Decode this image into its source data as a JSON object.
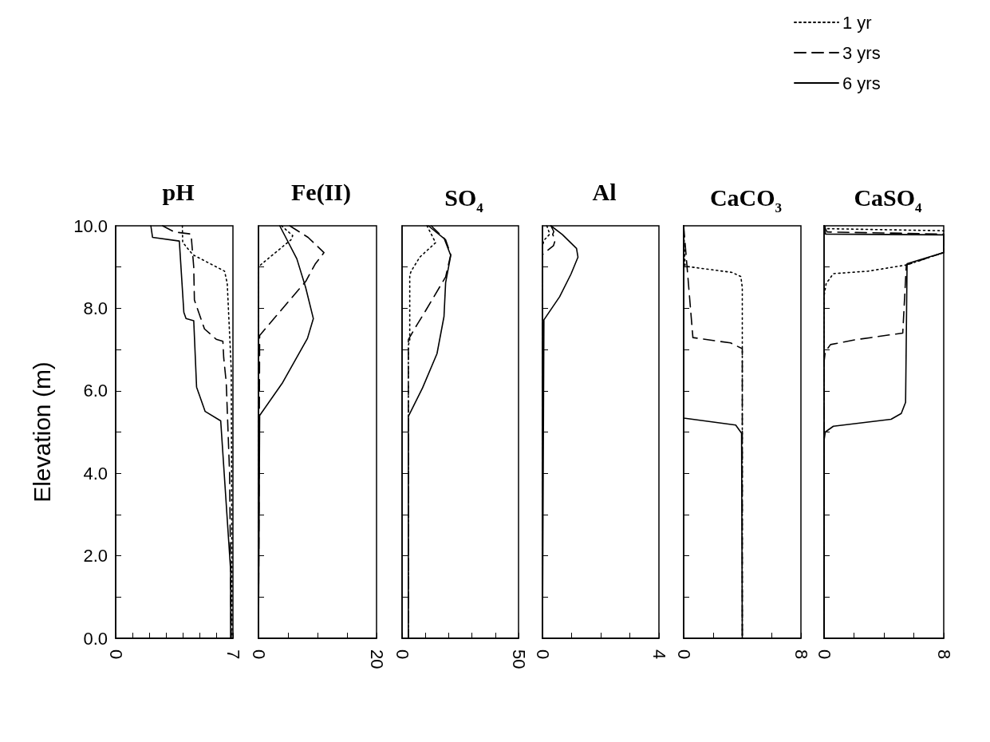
{
  "chart_data": [
    {
      "type": "line",
      "title": "pH",
      "ylabel": "Elevation (m)",
      "xlim": [
        0,
        7
      ],
      "xticks": [
        0,
        {
          "value": 1,
          "label": null
        },
        {
          "value": 2,
          "label": null
        },
        {
          "value": 3,
          "label": null
        },
        {
          "value": 4,
          "label": null
        },
        {
          "value": 5,
          "label": null
        },
        {
          "value": 6,
          "label": null
        },
        7
      ],
      "ylim": [
        0,
        10
      ],
      "yticks": [
        {
          "value": 0,
          "label": "0.0"
        },
        {
          "value": 1,
          "label": null
        },
        {
          "value": 2,
          "label": "2.0"
        },
        {
          "value": 3,
          "label": null
        },
        {
          "value": 4,
          "label": "4.0"
        },
        {
          "value": 5,
          "label": null
        },
        {
          "value": 6,
          "label": "6.0"
        },
        {
          "value": 7,
          "label": null
        },
        {
          "value": 8,
          "label": "8.0"
        },
        {
          "value": 9,
          "label": null
        },
        {
          "value": 10,
          "label": "10.0"
        }
      ],
      "series": [
        {
          "color": "#000000",
          "line_style": "dotted",
          "x": [
            3.98,
            4.0,
            4.6,
            6.5,
            6.66,
            6.9,
            6.95
          ],
          "values": [
            10,
            9.6,
            9.3,
            8.9,
            8.6,
            6.5,
            0
          ]
        },
        {
          "color": "#000000",
          "line_style": "dashed",
          "x": [
            2.8,
            3.5,
            4.5,
            4.66,
            4.7,
            5.3,
            6.0,
            6.4,
            6.45,
            6.6,
            6.8,
            6.9
          ],
          "values": [
            10,
            9.85,
            9.8,
            9.0,
            8.2,
            7.5,
            7.25,
            7.2,
            6.8,
            6.2,
            4.0,
            0
          ]
        },
        {
          "color": "#000000",
          "line_style": "solid",
          "x": [
            2.1,
            2.2,
            3.8,
            4.07,
            4.2,
            4.66,
            4.83,
            5.34,
            6.27,
            6.86,
            6.86
          ],
          "values": [
            10,
            9.72,
            9.63,
            7.9,
            7.75,
            7.7,
            6.09,
            5.5,
            5.27,
            1.66,
            0
          ]
        }
      ]
    },
    {
      "type": "line",
      "title": "Fe(II)",
      "tick_labels": "x",
      "xlim": [
        0,
        20
      ],
      "xticks": [
        0,
        {
          "value": 5,
          "label": null
        },
        {
          "value": 10,
          "label": null
        },
        {
          "value": 15,
          "label": null
        },
        20
      ],
      "ylim": [
        0,
        10
      ],
      "yticks": [
        {
          "value": 1,
          "label": null
        },
        {
          "value": 2,
          "label": null
        },
        {
          "value": 3,
          "label": null
        },
        {
          "value": 4,
          "label": null
        },
        {
          "value": 5,
          "label": null
        },
        {
          "value": 6,
          "label": null
        },
        {
          "value": 7,
          "label": null
        },
        {
          "value": 8,
          "label": null
        },
        {
          "value": 9,
          "label": null
        }
      ],
      "series": [
        {
          "color": "#000000",
          "line_style": "dotted",
          "x": [
            3.9,
            5.8,
            5.5,
            0.5,
            0,
            0
          ],
          "values": [
            10,
            9.76,
            9.66,
            9.07,
            9.0,
            0
          ]
        },
        {
          "color": "#000000",
          "line_style": "dashed",
          "x": [
            5.3,
            8.4,
            11.1,
            9.6,
            8.0,
            2.2,
            0.2,
            0
          ],
          "values": [
            10,
            9.72,
            9.35,
            9.07,
            8.65,
            7.68,
            7.34,
            0
          ]
        },
        {
          "color": "#000000",
          "line_style": "solid",
          "x": [
            3.6,
            6.5,
            8.0,
            9.3,
            8.3,
            4.1,
            0.2,
            0
          ],
          "values": [
            10,
            9.2,
            8.5,
            7.75,
            7.27,
            6.2,
            5.4,
            0
          ]
        }
      ]
    },
    {
      "type": "line",
      "title": "SO$_{4}$",
      "tick_labels": "x",
      "xlim": [
        0,
        50
      ],
      "xticks": [
        0,
        {
          "value": 10,
          "label": null
        },
        {
          "value": 20,
          "label": null
        },
        {
          "value": 30,
          "label": null
        },
        {
          "value": 40,
          "label": null
        },
        50
      ],
      "ylim": [
        0,
        10
      ],
      "yticks": [
        {
          "value": 1,
          "label": null
        },
        {
          "value": 2,
          "label": null
        },
        {
          "value": 3,
          "label": null
        },
        {
          "value": 4,
          "label": null
        },
        {
          "value": 5,
          "label": null
        },
        {
          "value": 6,
          "label": null
        },
        {
          "value": 7,
          "label": null
        },
        {
          "value": 8,
          "label": null
        },
        {
          "value": 9,
          "label": null
        }
      ],
      "series": [
        {
          "color": "#000000",
          "line_style": "dotted",
          "x": [
            10.7,
            14.4,
            7.6,
            3.9,
            3.3,
            3.3,
            2.7,
            2.7
          ],
          "values": [
            10,
            9.59,
            9.24,
            8.9,
            8.8,
            7.24,
            7.1,
            0
          ]
        },
        {
          "color": "#000000",
          "line_style": "dashed",
          "x": [
            12.5,
            18.7,
            20.9,
            18.7,
            10,
            6.4,
            2.7,
            2.7
          ],
          "values": [
            10,
            9.66,
            9.3,
            8.76,
            7.93,
            7.6,
            7.24,
            0
          ]
        },
        {
          "color": "#000000",
          "line_style": "solid",
          "x": [
            11.3,
            18.1,
            20.9,
            18.7,
            18,
            15,
            8.8,
            2.7,
            2.7
          ],
          "values": [
            10,
            9.69,
            9.28,
            8.62,
            7.8,
            6.9,
            6.07,
            5.38,
            0
          ]
        }
      ]
    },
    {
      "type": "line",
      "title": "Al",
      "tick_labels": "x",
      "xlim": [
        0,
        4
      ],
      "xticks": [
        0,
        {
          "value": 1,
          "label": null
        },
        {
          "value": 2,
          "label": null
        },
        {
          "value": 3,
          "label": null
        },
        4
      ],
      "ylim": [
        0,
        10
      ],
      "yticks": [
        {
          "value": 1,
          "label": null
        },
        {
          "value": 2,
          "label": null
        },
        {
          "value": 3,
          "label": null
        },
        {
          "value": 4,
          "label": null
        },
        {
          "value": 5,
          "label": null
        },
        {
          "value": 6,
          "label": null
        },
        {
          "value": 7,
          "label": null
        },
        {
          "value": 8,
          "label": null
        },
        {
          "value": 9,
          "label": null
        }
      ],
      "series": [
        {
          "color": "#000000",
          "line_style": "dotted",
          "x": [
            0.15,
            0.25,
            0.15,
            0.05,
            0,
            0
          ],
          "values": [
            10,
            9.8,
            9.72,
            9.65,
            9.5,
            0
          ]
        },
        {
          "color": "#000000",
          "line_style": "dashed",
          "x": [
            0.29,
            0.39,
            0.35,
            0.44,
            0.38,
            0,
            0
          ],
          "values": [
            10,
            9.86,
            9.79,
            9.66,
            9.52,
            9.3,
            0
          ]
        },
        {
          "color": "#000000",
          "line_style": "solid",
          "x": [
            0.29,
            0.68,
            1.17,
            1.22,
            0.98,
            0.59,
            0.05,
            0
          ],
          "values": [
            10,
            9.79,
            9.45,
            9.24,
            8.83,
            8.28,
            7.72,
            0
          ]
        }
      ]
    },
    {
      "type": "line",
      "title": "CaCO$_{3}$",
      "tick_labels": "x",
      "xlim": [
        0,
        8
      ],
      "xticks": [
        0,
        {
          "value": 2,
          "label": null
        },
        {
          "value": 4,
          "label": null
        },
        {
          "value": 6,
          "label": null
        },
        8
      ],
      "ylim": [
        0,
        10
      ],
      "yticks": [
        {
          "value": 1,
          "label": null
        },
        {
          "value": 2,
          "label": null
        },
        {
          "value": 3,
          "label": null
        },
        {
          "value": 4,
          "label": null
        },
        {
          "value": 5,
          "label": null
        },
        {
          "value": 6,
          "label": null
        },
        {
          "value": 7,
          "label": null
        },
        {
          "value": 8,
          "label": null
        },
        {
          "value": 9,
          "label": null
        }
      ],
      "series": [
        {
          "color": "#000000",
          "line_style": "dotted",
          "x": [
            0,
            0.1,
            3.3,
            3.9,
            4.0,
            4.0
          ],
          "values": [
            10,
            9.02,
            8.87,
            8.77,
            8.5,
            0
          ]
        },
        {
          "color": "#000000",
          "line_style": "dashed",
          "x": [
            0,
            0.63,
            3.2,
            4.0,
            4.0
          ],
          "values": [
            10,
            7.29,
            7.16,
            7.02,
            0
          ]
        },
        {
          "color": "#000000",
          "line_style": "solid",
          "x": [
            0,
            0,
            3.55,
            3.95,
            4.0
          ],
          "values": [
            10,
            5.34,
            5.17,
            4.97,
            0
          ]
        }
      ]
    },
    {
      "type": "line",
      "title": "CaSO$_{4}$",
      "tick_labels": "x",
      "legend": "top left",
      "xlim": [
        0,
        8
      ],
      "xticks": [
        0,
        {
          "value": 2,
          "label": null
        },
        {
          "value": 4,
          "label": null
        },
        {
          "value": 6,
          "label": null
        },
        8
      ],
      "ylim": [
        0,
        10
      ],
      "yticks": [
        {
          "value": 1,
          "label": null
        },
        {
          "value": 2,
          "label": null
        },
        {
          "value": 3,
          "label": null
        },
        {
          "value": 4,
          "label": null
        },
        {
          "value": 5,
          "label": null
        },
        {
          "value": 6,
          "label": null
        },
        {
          "value": 7,
          "label": null
        },
        {
          "value": 8,
          "label": null
        },
        {
          "value": 9,
          "label": null
        }
      ],
      "series": [
        {
          "name": "1 yr",
          "color": "#000000",
          "line_style": "dotted",
          "x": [
            0,
            0.2,
            8,
            8,
            5.5,
            2.94,
            0.62,
            0.14,
            0,
            0
          ],
          "values": [
            10,
            9.93,
            9.88,
            9.35,
            9.05,
            8.9,
            8.84,
            8.6,
            8.3,
            0
          ]
        },
        {
          "name": "3 yrs",
          "color": "#000000",
          "line_style": "dashed",
          "x": [
            0,
            0.2,
            8,
            8,
            5.5,
            5.26,
            1.97,
            0.43,
            0.08,
            0,
            0
          ],
          "values": [
            10,
            9.85,
            9.8,
            9.35,
            9.05,
            7.4,
            7.23,
            7.12,
            6.95,
            6.7,
            0
          ]
        },
        {
          "name": "6 yrs",
          "color": "#000000",
          "line_style": "solid",
          "x": [
            0,
            0.1,
            8,
            8,
            5.55,
            5.45,
            5.16,
            4.48,
            0.62,
            0.08,
            0,
            0
          ],
          "values": [
            10,
            9.8,
            9.78,
            9.35,
            9.08,
            5.72,
            5.45,
            5.31,
            5.14,
            5.0,
            4.8,
            0
          ]
        }
      ]
    }
  ]
}
